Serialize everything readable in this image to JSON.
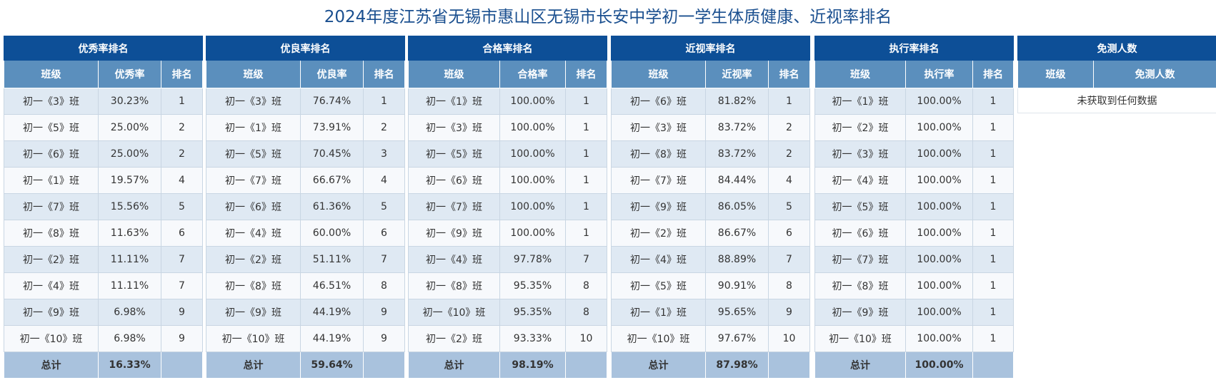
{
  "title": "2024年度江苏省无锡市惠山区无锡市长安中学初一学生体质健康、近视率排名",
  "tables": [
    {
      "header": "优秀率排名",
      "columns": [
        "班级",
        "优秀率",
        "排名"
      ],
      "rows": [
        [
          "初一《3》班",
          "30.23%",
          "1"
        ],
        [
          "初一《5》班",
          "25.00%",
          "2"
        ],
        [
          "初一《6》班",
          "25.00%",
          "2"
        ],
        [
          "初一《1》班",
          "19.57%",
          "4"
        ],
        [
          "初一《7》班",
          "15.56%",
          "5"
        ],
        [
          "初一《8》班",
          "11.63%",
          "6"
        ],
        [
          "初一《2》班",
          "11.11%",
          "7"
        ],
        [
          "初一《4》班",
          "11.11%",
          "7"
        ],
        [
          "初一《9》班",
          "6.98%",
          "9"
        ],
        [
          "初一《10》班",
          "6.98%",
          "9"
        ]
      ],
      "total": [
        "总计",
        "16.33%",
        ""
      ]
    },
    {
      "header": "优良率排名",
      "columns": [
        "班级",
        "优良率",
        "排名"
      ],
      "rows": [
        [
          "初一《3》班",
          "76.74%",
          "1"
        ],
        [
          "初一《1》班",
          "73.91%",
          "2"
        ],
        [
          "初一《5》班",
          "70.45%",
          "3"
        ],
        [
          "初一《7》班",
          "66.67%",
          "4"
        ],
        [
          "初一《6》班",
          "61.36%",
          "5"
        ],
        [
          "初一《4》班",
          "60.00%",
          "6"
        ],
        [
          "初一《2》班",
          "51.11%",
          "7"
        ],
        [
          "初一《8》班",
          "46.51%",
          "8"
        ],
        [
          "初一《9》班",
          "44.19%",
          "9"
        ],
        [
          "初一《10》班",
          "44.19%",
          "9"
        ]
      ],
      "total": [
        "总计",
        "59.64%",
        ""
      ]
    },
    {
      "header": "合格率排名",
      "columns": [
        "班级",
        "合格率",
        "排名"
      ],
      "rows": [
        [
          "初一《1》班",
          "100.00%",
          "1"
        ],
        [
          "初一《3》班",
          "100.00%",
          "1"
        ],
        [
          "初一《5》班",
          "100.00%",
          "1"
        ],
        [
          "初一《6》班",
          "100.00%",
          "1"
        ],
        [
          "初一《7》班",
          "100.00%",
          "1"
        ],
        [
          "初一《9》班",
          "100.00%",
          "1"
        ],
        [
          "初一《4》班",
          "97.78%",
          "7"
        ],
        [
          "初一《8》班",
          "95.35%",
          "8"
        ],
        [
          "初一《10》班",
          "95.35%",
          "8"
        ],
        [
          "初一《2》班",
          "93.33%",
          "10"
        ]
      ],
      "total": [
        "总计",
        "98.19%",
        ""
      ]
    },
    {
      "header": "近视率排名",
      "columns": [
        "班级",
        "近视率",
        "排名"
      ],
      "rows": [
        [
          "初一《6》班",
          "81.82%",
          "1"
        ],
        [
          "初一《3》班",
          "83.72%",
          "2"
        ],
        [
          "初一《8》班",
          "83.72%",
          "2"
        ],
        [
          "初一《7》班",
          "84.44%",
          "4"
        ],
        [
          "初一《9》班",
          "86.05%",
          "5"
        ],
        [
          "初一《2》班",
          "86.67%",
          "6"
        ],
        [
          "初一《4》班",
          "88.89%",
          "7"
        ],
        [
          "初一《5》班",
          "90.91%",
          "8"
        ],
        [
          "初一《1》班",
          "95.65%",
          "9"
        ],
        [
          "初一《10》班",
          "97.67%",
          "10"
        ]
      ],
      "total": [
        "总计",
        "87.98%",
        ""
      ]
    },
    {
      "header": "执行率排名",
      "columns": [
        "班级",
        "执行率",
        "排名"
      ],
      "rows": [
        [
          "初一《1》班",
          "100.00%",
          "1"
        ],
        [
          "初一《2》班",
          "100.00%",
          "1"
        ],
        [
          "初一《3》班",
          "100.00%",
          "1"
        ],
        [
          "初一《4》班",
          "100.00%",
          "1"
        ],
        [
          "初一《5》班",
          "100.00%",
          "1"
        ],
        [
          "初一《6》班",
          "100.00%",
          "1"
        ],
        [
          "初一《7》班",
          "100.00%",
          "1"
        ],
        [
          "初一《8》班",
          "100.00%",
          "1"
        ],
        [
          "初一《9》班",
          "100.00%",
          "1"
        ],
        [
          "初一《10》班",
          "100.00%",
          "1"
        ]
      ],
      "total": [
        "总计",
        "100.00%",
        ""
      ]
    }
  ],
  "exempt": {
    "header": "免测人数",
    "columns": [
      "班级",
      "免测人数"
    ],
    "empty_text": "未获取到任何数据"
  }
}
